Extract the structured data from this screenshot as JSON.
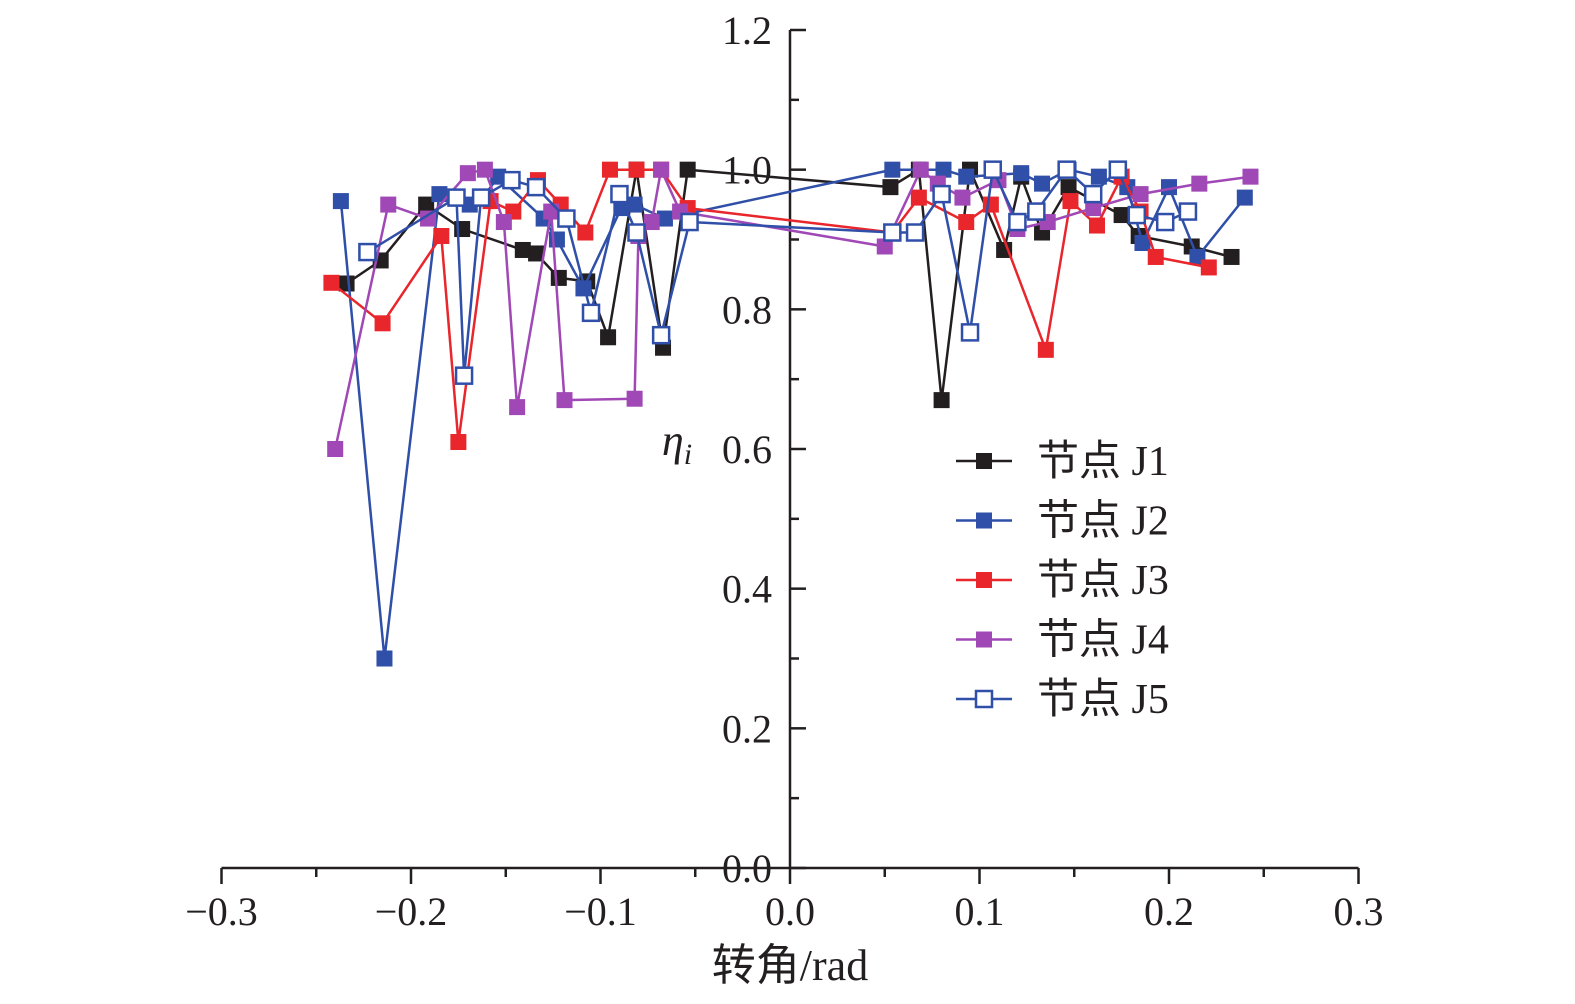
{
  "chart_data": {
    "type": "line",
    "xlabel": "转角/rad",
    "ylabel": "ηi",
    "xlim": [
      -0.3,
      0.3
    ],
    "ylim": [
      0.0,
      1.2
    ],
    "x_ticks": [
      -0.3,
      -0.2,
      -0.1,
      0.0,
      0.1,
      0.2,
      0.3
    ],
    "x_tick_labels": [
      "−0.3",
      "−0.2",
      "−0.1",
      "0.0",
      "0.1",
      "0.2",
      "0.3"
    ],
    "y_ticks": [
      0.0,
      0.2,
      0.4,
      0.6,
      0.8,
      1.0,
      1.2
    ],
    "y_tick_labels": [
      "0.0",
      "0.2",
      "0.4",
      "0.6",
      "0.8",
      "1.0",
      "1.2"
    ],
    "grid": false,
    "legend_position": "right-center",
    "series": [
      {
        "name": "节点 J1",
        "color": "#231f20",
        "marker": "filled-square",
        "points": [
          [
            -0.234,
            0.837
          ],
          [
            -0.216,
            0.87
          ],
          [
            -0.192,
            0.95
          ],
          [
            -0.173,
            0.915
          ],
          [
            -0.141,
            0.885
          ],
          [
            -0.134,
            0.88
          ],
          [
            -0.122,
            0.845
          ],
          [
            -0.107,
            0.84
          ],
          [
            -0.096,
            0.76
          ],
          [
            -0.081,
            1.0
          ],
          [
            -0.067,
            0.745
          ],
          [
            -0.054,
            1.0
          ],
          [
            0.053,
            0.975
          ],
          [
            0.068,
            1.0
          ],
          [
            0.08,
            0.67
          ],
          [
            0.095,
            1.0
          ],
          [
            0.113,
            0.885
          ],
          [
            0.122,
            0.99
          ],
          [
            0.133,
            0.91
          ],
          [
            0.147,
            0.975
          ],
          [
            0.175,
            0.935
          ],
          [
            0.184,
            0.905
          ],
          [
            0.212,
            0.89
          ],
          [
            0.233,
            0.875
          ]
        ]
      },
      {
        "name": "节点 J2",
        "color": "#2f4fa8",
        "marker": "filled-square",
        "points": [
          [
            -0.237,
            0.955
          ],
          [
            -0.214,
            0.3
          ],
          [
            -0.185,
            0.965
          ],
          [
            -0.169,
            0.95
          ],
          [
            -0.162,
            0.96
          ],
          [
            -0.154,
            0.99
          ],
          [
            -0.13,
            0.93
          ],
          [
            -0.123,
            0.9
          ],
          [
            -0.109,
            0.83
          ],
          [
            -0.089,
            0.945
          ],
          [
            -0.082,
            0.95
          ],
          [
            -0.066,
            0.93
          ],
          [
            0.054,
            1.0
          ],
          [
            0.081,
            1.0
          ],
          [
            0.093,
            0.99
          ],
          [
            0.122,
            0.995
          ],
          [
            0.133,
            0.98
          ],
          [
            0.147,
            1.0
          ],
          [
            0.163,
            0.99
          ],
          [
            0.178,
            0.975
          ],
          [
            0.186,
            0.895
          ],
          [
            0.2,
            0.975
          ],
          [
            0.215,
            0.875
          ],
          [
            0.24,
            0.96
          ]
        ]
      },
      {
        "name": "节点 J3",
        "color": "#e8262b",
        "marker": "filled-square",
        "points": [
          [
            -0.242,
            0.838
          ],
          [
            -0.215,
            0.78
          ],
          [
            -0.184,
            0.905
          ],
          [
            -0.175,
            0.61
          ],
          [
            -0.158,
            0.955
          ],
          [
            -0.146,
            0.94
          ],
          [
            -0.133,
            0.985
          ],
          [
            -0.121,
            0.95
          ],
          [
            -0.108,
            0.91
          ],
          [
            -0.095,
            1.0
          ],
          [
            -0.081,
            1.0
          ],
          [
            -0.068,
            1.0
          ],
          [
            -0.054,
            0.945
          ],
          [
            0.054,
            0.91
          ],
          [
            0.068,
            0.96
          ],
          [
            0.093,
            0.925
          ],
          [
            0.106,
            0.95
          ],
          [
            0.135,
            0.742
          ],
          [
            0.148,
            0.955
          ],
          [
            0.162,
            0.92
          ],
          [
            0.175,
            0.99
          ],
          [
            0.185,
            0.94
          ],
          [
            0.193,
            0.875
          ],
          [
            0.221,
            0.86
          ]
        ]
      },
      {
        "name": "节点 J4",
        "color": "#a048b5",
        "marker": "filled-square",
        "points": [
          [
            -0.24,
            0.6
          ],
          [
            -0.212,
            0.95
          ],
          [
            -0.191,
            0.93
          ],
          [
            -0.17,
            0.995
          ],
          [
            -0.161,
            1.0
          ],
          [
            -0.151,
            0.925
          ],
          [
            -0.144,
            0.66
          ],
          [
            -0.126,
            0.94
          ],
          [
            -0.119,
            0.67
          ],
          [
            -0.082,
            0.672
          ],
          [
            -0.08,
            0.905
          ],
          [
            -0.073,
            0.925
          ],
          [
            -0.068,
            1.0
          ],
          [
            -0.058,
            0.94
          ],
          [
            0.05,
            0.89
          ],
          [
            0.069,
            1.0
          ],
          [
            0.078,
            0.98
          ],
          [
            0.091,
            0.96
          ],
          [
            0.11,
            0.985
          ],
          [
            0.12,
            0.915
          ],
          [
            0.136,
            0.925
          ],
          [
            0.16,
            0.945
          ],
          [
            0.185,
            0.965
          ],
          [
            0.216,
            0.98
          ],
          [
            0.243,
            0.99
          ]
        ]
      },
      {
        "name": "节点 J5",
        "color": "#2f4fa8",
        "marker": "open-square",
        "points": [
          [
            -0.223,
            0.882
          ],
          [
            -0.176,
            0.96
          ],
          [
            -0.172,
            0.705
          ],
          [
            -0.163,
            0.96
          ],
          [
            -0.147,
            0.985
          ],
          [
            -0.134,
            0.975
          ],
          [
            -0.118,
            0.93
          ],
          [
            -0.105,
            0.795
          ],
          [
            -0.09,
            0.965
          ],
          [
            -0.081,
            0.91
          ],
          [
            -0.068,
            0.763
          ],
          [
            -0.053,
            0.925
          ],
          [
            0.054,
            0.91
          ],
          [
            0.066,
            0.91
          ],
          [
            0.08,
            0.965
          ],
          [
            0.095,
            0.767
          ],
          [
            0.107,
            1.0
          ],
          [
            0.12,
            0.925
          ],
          [
            0.13,
            0.94
          ],
          [
            0.146,
            1.0
          ],
          [
            0.16,
            0.965
          ],
          [
            0.173,
            1.0
          ],
          [
            0.183,
            0.935
          ],
          [
            0.198,
            0.925
          ],
          [
            0.21,
            0.94
          ]
        ]
      }
    ]
  }
}
